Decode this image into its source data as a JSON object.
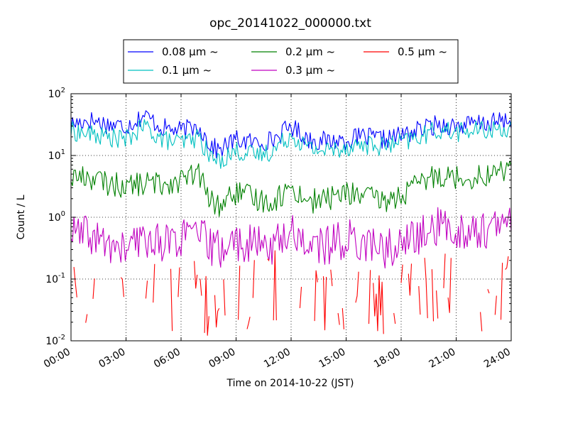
{
  "chart_data": {
    "type": "line",
    "title": "opc_20141022_000000.txt",
    "xlabel": "Time on 2014-10-22 (JST)",
    "ylabel": "Count / L",
    "x_range": [
      "00:00",
      "24:00"
    ],
    "x_ticks": [
      "00:00",
      "03:00",
      "06:00",
      "09:00",
      "12:00",
      "15:00",
      "18:00",
      "21:00",
      "24:00"
    ],
    "x_tick_hours": [
      0,
      3,
      6,
      9,
      12,
      15,
      18,
      21,
      24
    ],
    "y_scale": "log",
    "ylim": [
      0.01,
      100
    ],
    "y_ticks": [
      {
        "base": "10",
        "exp": "-2",
        "value": 0.01
      },
      {
        "base": "10",
        "exp": "-1",
        "value": 0.1
      },
      {
        "base": "10",
        "exp": "0",
        "value": 1
      },
      {
        "base": "10",
        "exp": "1",
        "value": 10
      },
      {
        "base": "10",
        "exp": "2",
        "value": 100
      }
    ],
    "grid": true,
    "legend_position": "top-center",
    "series": [
      {
        "name": "0.08 μm ~",
        "color": "#0000ff",
        "break_below": 0,
        "x": [
          0,
          1,
          2,
          3,
          4,
          5,
          6,
          7,
          7.5,
          8,
          9,
          10,
          11,
          12,
          13,
          14,
          15,
          16,
          17,
          18,
          19,
          20,
          21,
          22,
          23,
          24
        ],
        "y": [
          32,
          38,
          32,
          30,
          45,
          28,
          25,
          30,
          16,
          12,
          18,
          16,
          18,
          30,
          18,
          17,
          18,
          20,
          18,
          21,
          26,
          32,
          30,
          32,
          34,
          37
        ]
      },
      {
        "name": "0.1 μm ~",
        "color": "#00c0c0",
        "break_below": 0,
        "x": [
          0,
          1,
          2,
          3,
          4,
          5,
          6,
          7,
          7.5,
          8,
          9,
          10,
          11,
          12,
          13,
          14,
          15,
          16,
          17,
          18,
          19,
          20,
          21,
          22,
          23,
          24
        ],
        "y": [
          25,
          22,
          20,
          18,
          30,
          18,
          16,
          20,
          10,
          8,
          12,
          10,
          12,
          22,
          13,
          12,
          14,
          15,
          14,
          16,
          20,
          26,
          24,
          25,
          26,
          28
        ]
      },
      {
        "name": "0.2 μm ~",
        "color": "#008000",
        "break_below": 0,
        "x": [
          0,
          1,
          2,
          3,
          4,
          5,
          6,
          7,
          7.5,
          8,
          9,
          10,
          11,
          12,
          13,
          14,
          15,
          16,
          17,
          18,
          19,
          20,
          21,
          22,
          23,
          24
        ],
        "y": [
          4.5,
          4.5,
          3.5,
          3.2,
          3.5,
          3.5,
          4,
          5,
          2,
          1.5,
          2.5,
          2,
          1.8,
          3,
          1.8,
          2,
          2.5,
          2.2,
          1.8,
          2.2,
          3.5,
          5,
          4.5,
          4.5,
          5,
          6.5
        ]
      },
      {
        "name": "0.3 μm ~",
        "color": "#c000c0",
        "break_below": 0,
        "x": [
          0,
          1,
          2,
          3,
          4,
          5,
          6,
          7,
          7.5,
          8,
          9,
          10,
          11,
          12,
          13,
          14,
          15,
          16,
          17,
          18,
          19,
          20,
          21,
          22,
          23,
          24
        ],
        "y": [
          0.55,
          0.5,
          0.35,
          0.3,
          0.45,
          0.4,
          0.45,
          0.55,
          0.35,
          0.3,
          0.4,
          0.35,
          0.35,
          0.6,
          0.35,
          0.35,
          0.45,
          0.4,
          0.3,
          0.35,
          0.5,
          0.7,
          0.6,
          0.6,
          0.65,
          0.8
        ]
      },
      {
        "name": "0.5 μm ~",
        "color": "#ff0000",
        "break_below": 0.012,
        "x": [
          0,
          1,
          2,
          3,
          4,
          5,
          6,
          7,
          7.5,
          8,
          9,
          10,
          11,
          12,
          13,
          14,
          15,
          16,
          17,
          18,
          19,
          20,
          21,
          22,
          23,
          24
        ],
        "y": [
          0.03,
          0.02,
          0.025,
          0.03,
          0.05,
          0.03,
          0.025,
          0.04,
          0.03,
          0.02,
          0.03,
          0.05,
          0.06,
          0.04,
          0.03,
          0.03,
          0.04,
          0.03,
          0.02,
          0.03,
          0.04,
          0.05,
          0.04,
          0.03,
          0.03,
          0.04
        ]
      }
    ]
  }
}
